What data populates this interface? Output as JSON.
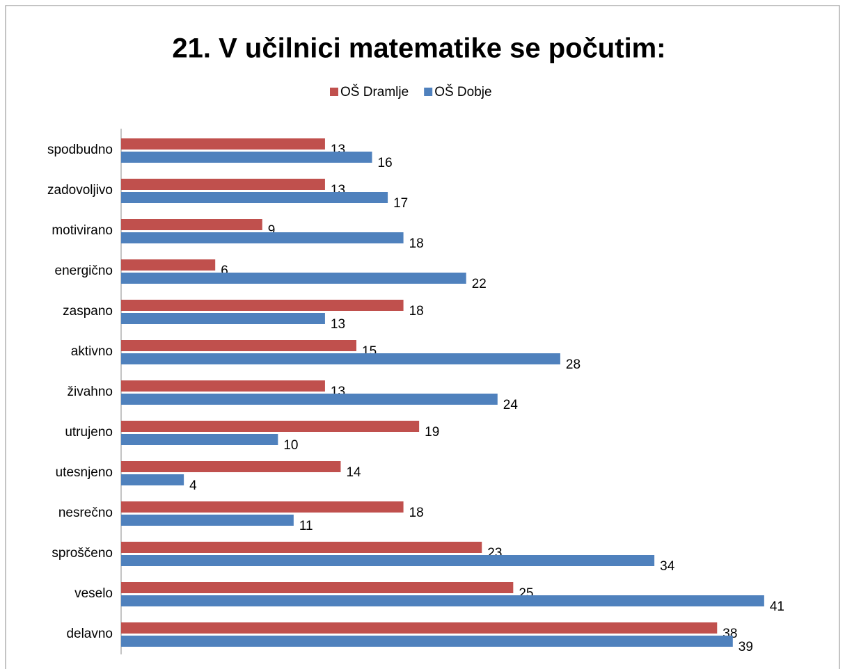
{
  "chart_data": {
    "type": "bar",
    "orientation": "horizontal",
    "title": "21. V učilnici matematike se počutim:",
    "categories": [
      "spodbudno",
      "zadovoljivo",
      "motivirano",
      "energično",
      "zaspano",
      "aktivno",
      "živahno",
      "utrujeno",
      "utesnjeno",
      "nesrečno",
      "sproščeno",
      "veselo",
      "delavno"
    ],
    "series": [
      {
        "name": "OŠ Dramlje",
        "color": "#c0504d",
        "values": [
          13,
          13,
          9,
          6,
          18,
          15,
          13,
          19,
          14,
          18,
          23,
          25,
          38
        ]
      },
      {
        "name": "OŠ Dobje",
        "color": "#4f81bd",
        "values": [
          16,
          17,
          18,
          22,
          13,
          28,
          24,
          10,
          4,
          11,
          34,
          41,
          39
        ]
      }
    ],
    "xlim": [
      0,
      45
    ],
    "legend": "top",
    "grid": false
  }
}
